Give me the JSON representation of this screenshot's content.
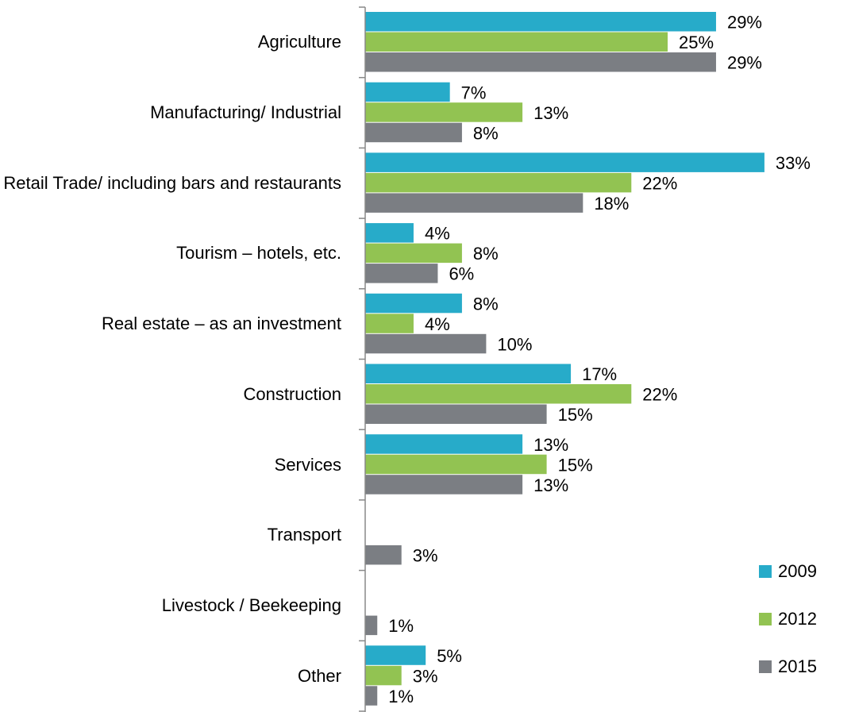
{
  "chart_data": {
    "type": "hbar",
    "categories": [
      "Agriculture",
      "Manufacturing/ Industrial",
      "Retail Trade/ including bars and restaurants",
      "Tourism – hotels, etc.",
      "Real estate – as an investment",
      "Construction",
      "Services",
      "Transport",
      "Livestock / Beekeeping",
      "Other"
    ],
    "series": [
      {
        "name": "2009",
        "color": "#27abc9",
        "values": [
          29,
          7,
          33,
          4,
          8,
          17,
          13,
          null,
          null,
          5
        ],
        "value_labels": [
          "29%",
          "7%",
          "33%",
          "4%",
          "8%",
          "17%",
          "13%",
          null,
          null,
          "5%"
        ]
      },
      {
        "name": "2012",
        "color": "#92c352",
        "values": [
          25,
          13,
          22,
          8,
          4,
          22,
          15,
          null,
          null,
          3
        ],
        "value_labels": [
          "25%",
          "13%",
          "22%",
          "8%",
          "4%",
          "22%",
          "15%",
          null,
          null,
          "3%"
        ]
      },
      {
        "name": "2015",
        "color": "#7b7e83",
        "values": [
          29,
          8,
          18,
          6,
          10,
          15,
          13,
          3,
          1,
          1
        ],
        "value_labels": [
          "29%",
          "8%",
          "18%",
          "6%",
          "10%",
          "15%",
          "13%",
          "3%",
          "1%",
          "1%"
        ]
      }
    ],
    "legend": "bottom-right"
  }
}
